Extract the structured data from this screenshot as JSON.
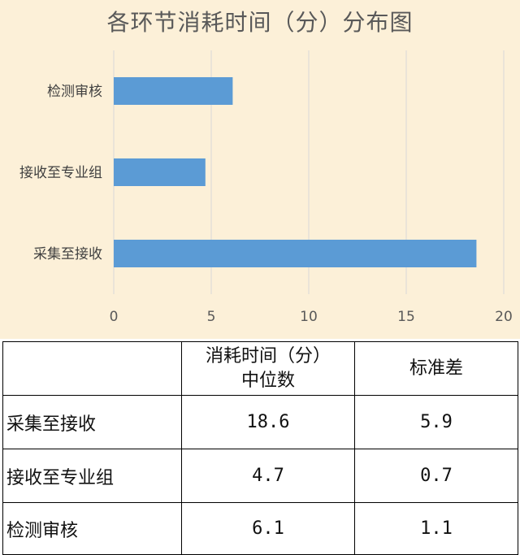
{
  "chart_data": {
    "type": "bar",
    "orientation": "horizontal",
    "title": "各环节消耗时间（分）分布图",
    "categories": [
      "检测审核",
      "接收至专业组",
      "采集至接收"
    ],
    "values": [
      6.1,
      4.7,
      18.6
    ],
    "xlim": [
      0,
      20
    ],
    "xticks": [
      "0",
      "5",
      "10",
      "15",
      "20"
    ],
    "grid": "vertical",
    "bar_color": "#5b9bd5",
    "background": "#fcf0d8"
  },
  "table": {
    "headers": [
      "",
      "消耗时间（分）\n中位数",
      "标准差"
    ],
    "header_line1": "消耗时间（分）",
    "header_line2": "中位数",
    "header_std": "标准差",
    "rows": [
      {
        "name": "采集至接收",
        "median": "18.6",
        "std": "5.9"
      },
      {
        "name": "接收至专业组",
        "median": "4.7",
        "std": "0.7"
      },
      {
        "name": "检测审核",
        "median": "6.1",
        "std": "1.1"
      }
    ]
  }
}
